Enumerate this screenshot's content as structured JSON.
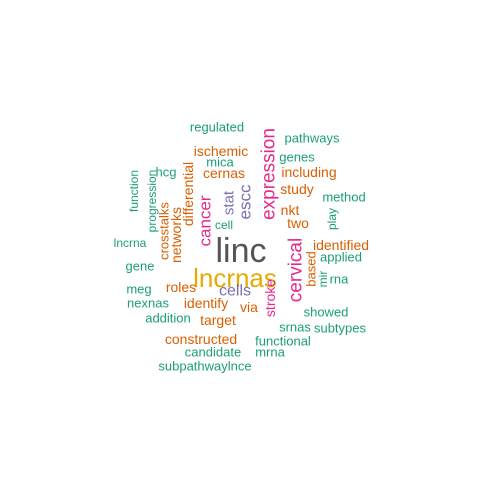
{
  "colors": {
    "teal": "#1b9e77",
    "orange": "#d95f02",
    "purple": "#7570b3",
    "magenta": "#e7298a",
    "gold": "#e6ab02",
    "gray": "#555555"
  },
  "words": [
    {
      "text": "linc",
      "color": "gray"
    },
    {
      "text": "lncrnas",
      "color": "gold"
    },
    {
      "text": "expression",
      "color": "magenta"
    },
    {
      "text": "cervical",
      "color": "magenta"
    },
    {
      "text": "cancer",
      "color": "magenta"
    },
    {
      "text": "escc",
      "color": "purple"
    },
    {
      "text": "stat",
      "color": "purple"
    },
    {
      "text": "cells",
      "color": "purple"
    },
    {
      "text": "stroke",
      "color": "magenta"
    },
    {
      "text": "differential",
      "color": "orange"
    },
    {
      "text": "networks",
      "color": "orange"
    },
    {
      "text": "crosstalks",
      "color": "orange"
    },
    {
      "text": "identify",
      "color": "orange"
    },
    {
      "text": "roles",
      "color": "orange"
    },
    {
      "text": "target",
      "color": "orange"
    },
    {
      "text": "constructed",
      "color": "orange"
    },
    {
      "text": "ischemic",
      "color": "orange"
    },
    {
      "text": "cernas",
      "color": "orange"
    },
    {
      "text": "including",
      "color": "orange"
    },
    {
      "text": "study",
      "color": "orange"
    },
    {
      "text": "nkt",
      "color": "orange"
    },
    {
      "text": "two",
      "color": "orange"
    },
    {
      "text": "identified",
      "color": "orange"
    },
    {
      "text": "via",
      "color": "orange"
    },
    {
      "text": "based",
      "color": "orange"
    },
    {
      "text": "regulated",
      "color": "teal"
    },
    {
      "text": "pathways",
      "color": "teal"
    },
    {
      "text": "genes",
      "color": "teal"
    },
    {
      "text": "mica",
      "color": "teal"
    },
    {
      "text": "hcg",
      "color": "teal"
    },
    {
      "text": "function",
      "color": "teal"
    },
    {
      "text": "progression",
      "color": "teal"
    },
    {
      "text": "method",
      "color": "teal"
    },
    {
      "text": "play",
      "color": "teal"
    },
    {
      "text": "cell",
      "color": "teal"
    },
    {
      "text": "lncrna",
      "color": "teal"
    },
    {
      "text": "applied",
      "color": "teal"
    },
    {
      "text": "gene",
      "color": "teal"
    },
    {
      "text": "mir",
      "color": "teal"
    },
    {
      "text": "rna",
      "color": "teal"
    },
    {
      "text": "meg",
      "color": "teal"
    },
    {
      "text": "nexnas",
      "color": "teal"
    },
    {
      "text": "showed",
      "color": "teal"
    },
    {
      "text": "addition",
      "color": "teal"
    },
    {
      "text": "srnas",
      "color": "teal"
    },
    {
      "text": "subtypes",
      "color": "teal"
    },
    {
      "text": "functional",
      "color": "teal"
    },
    {
      "text": "candidate",
      "color": "teal"
    },
    {
      "text": "mrna",
      "color": "teal"
    },
    {
      "text": "subpathwaylnce",
      "color": "teal"
    }
  ]
}
